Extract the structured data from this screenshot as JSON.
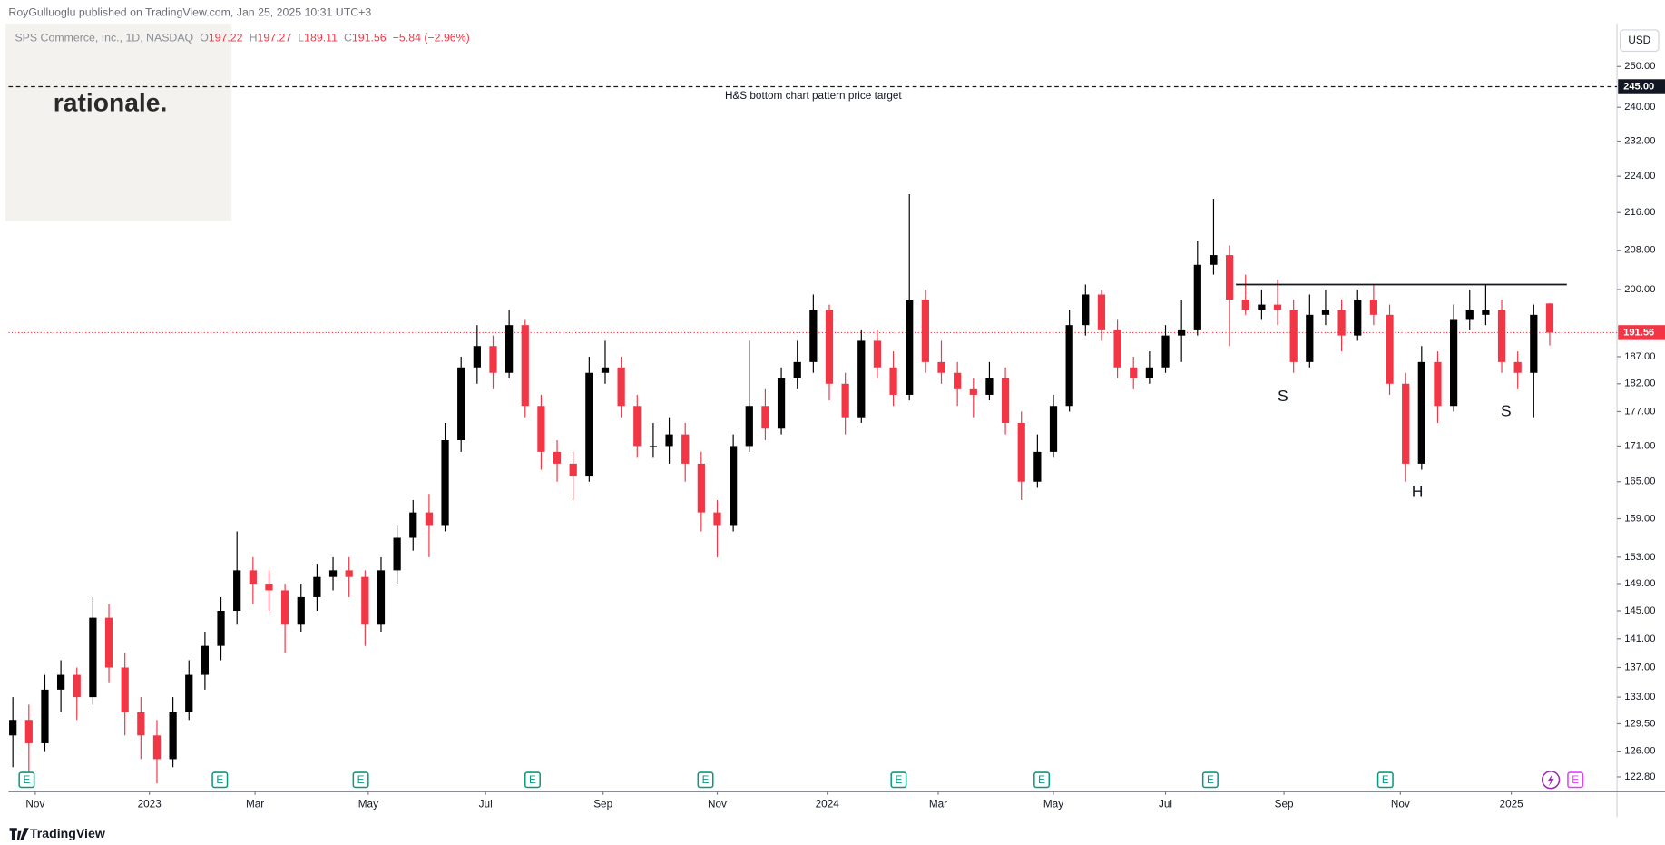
{
  "header": "RoyGulluoglu published on TradingView.com, Jan 25, 2025 10:31 UTC+3",
  "brand": "rationale.",
  "footer": "TradingView",
  "currency": "USD",
  "earnings_label": "E",
  "chart_data": {
    "type": "candlestick",
    "symbol": "SPS Commerce, Inc., 1D, NASDAQ",
    "ohlc_legend": [
      {
        "label": "O",
        "value": 197.22
      },
      {
        "label": "H",
        "value": 197.27
      },
      {
        "label": "L",
        "value": 189.11
      },
      {
        "label": "C",
        "value": 191.56
      }
    ],
    "change": "−5.84 (−2.96%)",
    "up_color": "#000000",
    "down_color": "#f23645",
    "open": [
      128,
      130,
      127,
      134,
      136,
      133,
      144,
      137,
      131,
      128,
      125,
      131,
      136,
      140,
      145,
      151,
      149,
      148,
      143,
      147,
      150,
      151,
      150,
      143,
      151,
      156,
      160,
      158,
      172,
      185,
      189,
      184,
      193,
      178,
      170,
      168,
      166,
      184,
      185,
      178,
      171,
      171,
      173,
      168,
      160,
      158,
      171,
      178,
      174,
      183,
      186,
      196,
      182,
      176,
      190,
      185,
      180,
      198,
      186,
      184,
      181,
      180,
      183,
      175,
      165,
      170,
      178,
      193,
      199,
      192,
      185,
      183,
      185,
      191,
      192,
      205,
      207,
      198,
      196,
      197,
      196,
      186,
      195,
      196,
      191,
      198,
      195,
      182,
      168,
      186,
      178,
      194,
      195,
      196,
      186,
      184,
      197.22
    ],
    "high": [
      133,
      132,
      136,
      138,
      137,
      147,
      146,
      139,
      133,
      130,
      133,
      138,
      142,
      147,
      157,
      153,
      151,
      149,
      149,
      152,
      153,
      153,
      151,
      153,
      158,
      162,
      163,
      175,
      187,
      193,
      191,
      196,
      194,
      180,
      172,
      170,
      187,
      190,
      187,
      180,
      175,
      176,
      175,
      170,
      162,
      173,
      190,
      181,
      185,
      190,
      199,
      197,
      184,
      192,
      192,
      188,
      220,
      200,
      190,
      186,
      183,
      186,
      185,
      177,
      173,
      180,
      196,
      201,
      200,
      194,
      187,
      188,
      193,
      198,
      210,
      219,
      209,
      203,
      200,
      202,
      198,
      199,
      200,
      198,
      200,
      201,
      197,
      184,
      189,
      188,
      197,
      200,
      201,
      198,
      188,
      197,
      197.27
    ],
    "low": [
      124,
      123,
      126,
      131,
      130,
      132,
      135,
      128,
      125,
      122,
      124,
      130,
      134,
      138,
      143,
      146,
      145,
      139,
      142,
      145,
      148,
      147,
      140,
      142,
      149,
      154,
      153,
      157,
      170,
      182,
      181,
      183,
      176,
      167,
      165,
      162,
      165,
      182,
      176,
      169,
      169,
      168,
      165,
      157,
      153,
      157,
      170,
      172,
      173,
      181,
      184,
      179,
      173,
      175,
      183,
      178,
      179,
      184,
      182,
      178,
      176,
      179,
      173,
      162,
      164,
      169,
      177,
      191,
      190,
      183,
      181,
      182,
      184,
      186,
      191,
      203,
      189,
      195,
      194,
      193,
      184,
      185,
      193,
      188,
      190,
      193,
      180,
      165,
      167,
      175,
      177,
      192,
      193,
      184,
      181,
      176,
      189.11
    ],
    "close": [
      130,
      127,
      134,
      136,
      133,
      144,
      137,
      131,
      128,
      125,
      131,
      136,
      140,
      145,
      151,
      149,
      148,
      143,
      147,
      150,
      151,
      150,
      143,
      151,
      156,
      160,
      158,
      172,
      185,
      189,
      184,
      193,
      178,
      170,
      168,
      166,
      184,
      185,
      178,
      171,
      171,
      173,
      168,
      160,
      158,
      171,
      178,
      174,
      183,
      186,
      196,
      182,
      176,
      190,
      185,
      180,
      198,
      186,
      184,
      181,
      180,
      183,
      175,
      165,
      170,
      178,
      193,
      199,
      192,
      185,
      183,
      185,
      191,
      192,
      205,
      207,
      198,
      196,
      197,
      196,
      186,
      195,
      196,
      191,
      198,
      195,
      182,
      168,
      186,
      178,
      194,
      196,
      196,
      186,
      184,
      195,
      191.56
    ],
    "xlim": [
      -0.27,
      100.2
    ],
    "xticks": [
      {
        "value": 1.4,
        "label": "Nov"
      },
      {
        "value": 8.53,
        "label": "2023"
      },
      {
        "value": 15.13,
        "label": "Mar"
      },
      {
        "value": 22.2,
        "label": "May"
      },
      {
        "value": 29.53,
        "label": "Jul"
      },
      {
        "value": 36.87,
        "label": "Sep"
      },
      {
        "value": 44,
        "label": "Nov"
      },
      {
        "value": 50.87,
        "label": "2024"
      },
      {
        "value": 57.8,
        "label": "Mar"
      },
      {
        "value": 65,
        "label": "May"
      },
      {
        "value": 72,
        "label": "Jul"
      },
      {
        "value": 79.4,
        "label": "Sep"
      },
      {
        "value": 86.67,
        "label": "Nov"
      },
      {
        "value": 93.6,
        "label": "2025"
      }
    ],
    "ylim": [
      121,
      261
    ],
    "log_scale": true,
    "grid": false,
    "yticks": [
      {
        "value": 250,
        "label": "250.00"
      },
      {
        "value": 240,
        "label": "240.00"
      },
      {
        "value": 232,
        "label": "232.00"
      },
      {
        "value": 224,
        "label": "224.00"
      },
      {
        "value": 216,
        "label": "216.00"
      },
      {
        "value": 208,
        "label": "208.00"
      },
      {
        "value": 200,
        "label": "200.00"
      },
      {
        "value": 187,
        "label": "187.00"
      },
      {
        "value": 182,
        "label": "182.00"
      },
      {
        "value": 177,
        "label": "177.00"
      },
      {
        "value": 171,
        "label": "171.00"
      },
      {
        "value": 165,
        "label": "165.00"
      },
      {
        "value": 159,
        "label": "159.00"
      },
      {
        "value": 153,
        "label": "153.00"
      },
      {
        "value": 149,
        "label": "149.00"
      },
      {
        "value": 145,
        "label": "145.00"
      },
      {
        "value": 141,
        "label": "141.00"
      },
      {
        "value": 137,
        "label": "137.00"
      },
      {
        "value": 133,
        "label": "133.00"
      },
      {
        "value": 129.5,
        "label": "129.50"
      },
      {
        "value": 126,
        "label": "126.00"
      },
      {
        "value": 122.8,
        "label": "122.80"
      }
    ],
    "target": {
      "text": "H&S bottom chart pattern price target",
      "value": 245,
      "label": "245.00"
    },
    "neckline": {
      "value": 201
    },
    "last_price": {
      "value": 191.56
    },
    "pattern_labels": [
      "S",
      "H",
      "S"
    ]
  }
}
